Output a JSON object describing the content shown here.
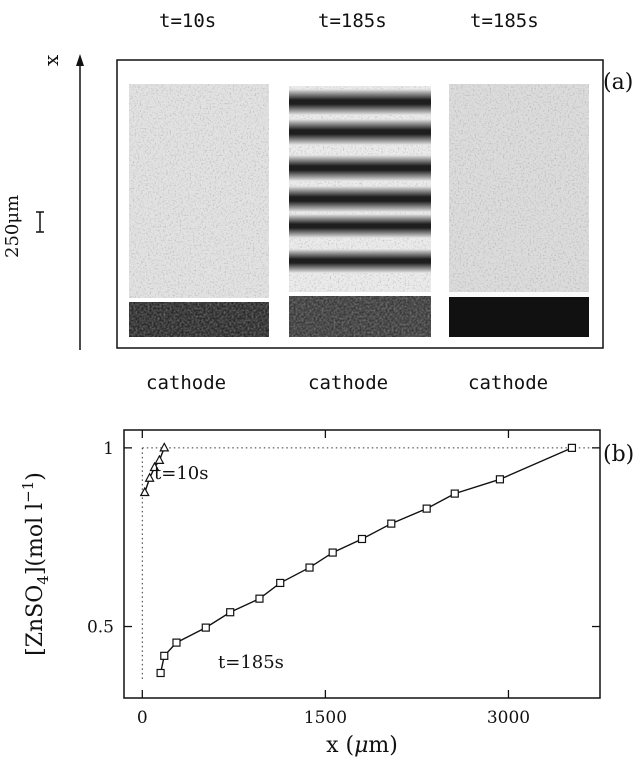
{
  "figure": {
    "panel_a": {
      "tag": "(a)",
      "top_labels": [
        "t=10s",
        "t=185s",
        "t=185s"
      ],
      "bottom_labels": [
        "cathode",
        "cathode",
        "cathode"
      ],
      "axis_label": "x",
      "scale_bar_label": "250μm"
    },
    "panel_b": {
      "tag": "(b)",
      "curve_labels": [
        "t=10s",
        "t=185s"
      ]
    }
  },
  "chart_data": {
    "type": "line",
    "xlabel": "x (μm)",
    "ylabel": "[ZnSO4](mol l-1)",
    "xlim": [
      -150,
      3750
    ],
    "ylim": [
      0.3,
      1.05
    ],
    "x_ticks": [
      0,
      1500,
      3000
    ],
    "y_ticks": [
      0.5,
      1
    ],
    "x_tick_labels": [
      "0",
      "1500",
      "3000"
    ],
    "y_tick_labels": [
      "0.5",
      "1"
    ],
    "reference_lines": [
      {
        "orientation": "horizontal",
        "y": 1,
        "style": "dotted"
      },
      {
        "orientation": "vertical",
        "x": 0,
        "style": "dotted"
      }
    ],
    "series": [
      {
        "name": "t=10s",
        "marker": "triangle",
        "x": [
          20,
          60,
          100,
          140,
          180
        ],
        "y": [
          0.875,
          0.915,
          0.945,
          0.965,
          1.0
        ]
      },
      {
        "name": "t=185s",
        "marker": "square",
        "x": [
          150,
          180,
          280,
          520,
          720,
          960,
          1130,
          1370,
          1560,
          1800,
          2040,
          2330,
          2560,
          2930,
          3520
        ],
        "y": [
          0.37,
          0.418,
          0.455,
          0.497,
          0.54,
          0.578,
          0.622,
          0.665,
          0.707,
          0.745,
          0.788,
          0.83,
          0.872,
          0.912,
          1.0
        ]
      }
    ]
  }
}
